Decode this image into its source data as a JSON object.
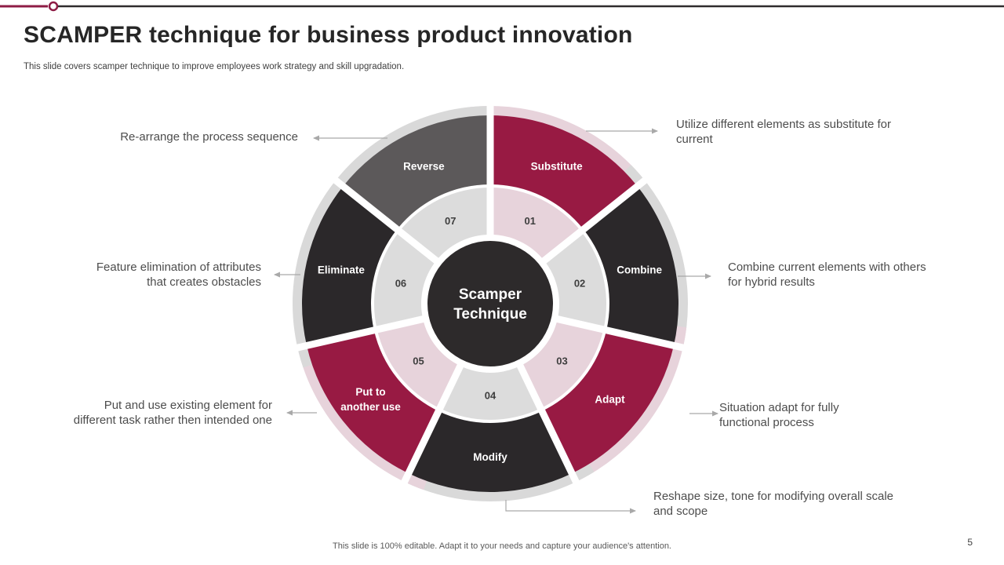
{
  "header": {
    "title": "SCAMPER technique for business product innovation",
    "subtitle": "This slide covers scamper technique to improve employees work strategy and skill upgradation."
  },
  "footer": {
    "note": "This slide is 100% editable. Adapt it to your needs and capture your audience's attention.",
    "page_number": "5"
  },
  "accent": {
    "maroon_line_color": "#8e1c45",
    "dark_line_color": "#2f2c2d"
  },
  "diagram": {
    "center": {
      "line1": "Scamper",
      "line2": "Technique",
      "fill": "#2d2a2b",
      "text_color": "#ffffff"
    },
    "colors": {
      "arrow": "#a9a9a9",
      "number_text": "#3e3e3e",
      "label_text": "#ffffff",
      "separator": "#ffffff"
    },
    "segments": [
      {
        "id": "substitute",
        "label": "Substitute",
        "number": "01",
        "fill": "#981a43",
        "echo": "#e7d3db",
        "inner_fill": "#e7d3db",
        "callout": "Utilize different elements as substitute for\ncurrent"
      },
      {
        "id": "combine",
        "label": "Combine",
        "number": "02",
        "fill": "#2b282a",
        "echo": "#d9d9d9",
        "inner_fill": "#dcdcdc",
        "callout": "Combine current elements with others\nfor hybrid results"
      },
      {
        "id": "adapt",
        "label": "Adapt",
        "number": "03",
        "fill": "#981a43",
        "echo": "#e7d3db",
        "inner_fill": "#e7d3db",
        "callout": "Situation adapt for fully\nfunctional process"
      },
      {
        "id": "modify",
        "label": "Modify",
        "number": "04",
        "fill": "#2b282a",
        "echo": "#d9d9d9",
        "inner_fill": "#dcdcdc",
        "callout": "Reshape size, tone for modifying overall scale\nand scope"
      },
      {
        "id": "put-to-another-use",
        "label": "Put to\nanother use",
        "number": "05",
        "fill": "#981a43",
        "echo": "#e7d3db",
        "inner_fill": "#e7d3db",
        "callout": "Put and use existing element for\ndifferent task rather then intended one"
      },
      {
        "id": "eliminate",
        "label": "Eliminate",
        "number": "06",
        "fill": "#2b282a",
        "echo": "#d9d9d9",
        "inner_fill": "#dcdcdc",
        "callout": "Feature elimination of attributes\nthat creates obstacles"
      },
      {
        "id": "reverse",
        "label": "Reverse",
        "number": "07",
        "fill": "#5c595a",
        "echo": "#d9d9d9",
        "inner_fill": "#dcdcdc",
        "callout": "Re-arrange the process sequence"
      }
    ]
  }
}
